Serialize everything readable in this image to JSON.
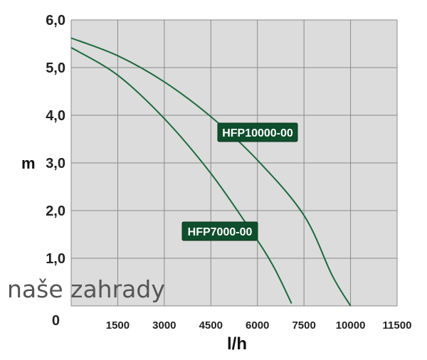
{
  "chart_data": {
    "type": "line",
    "xlabel": "l/h",
    "ylabel": "m",
    "xlim": [
      0,
      11500
    ],
    "ylim": [
      0,
      6
    ],
    "x_ticks": [
      1500,
      3000,
      4500,
      6000,
      7500,
      10000,
      11500
    ],
    "x_tick_labels": [
      "1500",
      "3000",
      "4500",
      "6000",
      "7500",
      "10000",
      "11500"
    ],
    "y_ticks": [
      0,
      1,
      2,
      3,
      4,
      5,
      6
    ],
    "y_tick_labels": [
      "0",
      "1,0",
      "2,0",
      "3,0",
      "4,0",
      "5,0",
      "6,0"
    ],
    "grid": true,
    "colors": {
      "plot_background": "#dcdcdc",
      "grid": "#8a8a8a",
      "curve": "#1d6b3c",
      "label_background": "#0e4e2c"
    },
    "series": [
      {
        "name": "HFP10000-00",
        "x": [
          0,
          1500,
          3000,
          4500,
          6000,
          7500,
          9000,
          10000
        ],
        "y": [
          5.62,
          5.25,
          4.7,
          3.97,
          3.06,
          1.9,
          0.65,
          0.0
        ]
      },
      {
        "name": "HFP7000-00",
        "x": [
          0,
          1500,
          3000,
          4500,
          5800,
          6500,
          7100
        ],
        "y": [
          5.42,
          4.84,
          3.93,
          2.78,
          1.57,
          0.85,
          0.05
        ]
      }
    ]
  },
  "watermark": "naše zahrady"
}
